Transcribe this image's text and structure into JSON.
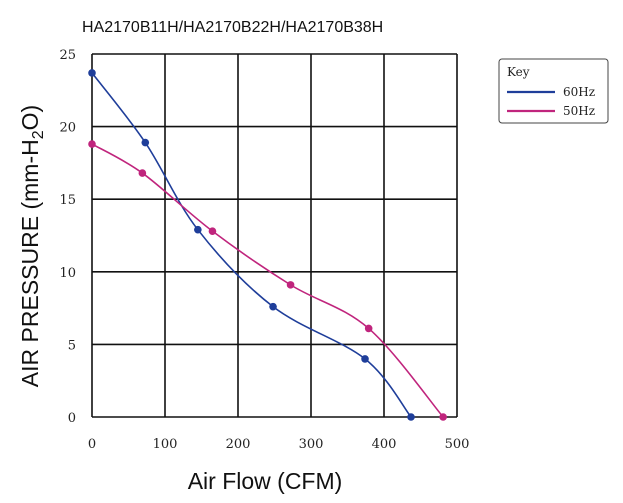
{
  "chart_data": {
    "type": "line",
    "title": "HA2170B11H/HA2170B22H/HA2170B38H",
    "xlabel": "Air Flow (CFM)",
    "ylabel": "AIR PRESSURE (mm-H",
    "ylabel_sub": "2",
    "ylabel_end": "O)",
    "xlim": [
      0,
      500
    ],
    "ylim": [
      0,
      25
    ],
    "x_ticks": [
      0,
      100,
      200,
      300,
      400,
      500
    ],
    "y_ticks": [
      0,
      5,
      10,
      15,
      20,
      25
    ],
    "grid": true,
    "legend": {
      "title": "Key",
      "placement": "right"
    },
    "series": [
      {
        "name": "60Hz",
        "color": "#1f3e9a",
        "x": [
          0,
          73,
          145,
          248,
          374,
          437
        ],
        "y": [
          23.7,
          18.9,
          12.9,
          7.6,
          4.0,
          0
        ]
      },
      {
        "name": "50Hz",
        "color": "#c0257d",
        "x": [
          0,
          69,
          165,
          272,
          379,
          481
        ],
        "y": [
          18.8,
          16.8,
          12.8,
          9.1,
          6.1,
          0
        ]
      }
    ]
  }
}
